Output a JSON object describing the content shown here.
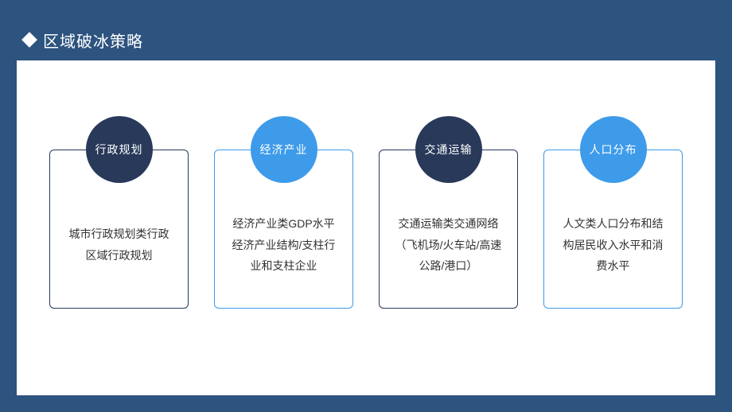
{
  "header": {
    "title": "区域破冰策略"
  },
  "colors": {
    "frame_bg": "#2d537f",
    "content_bg": "#ffffff",
    "circle_dark": "#28395a",
    "circle_light": "#3d9bea",
    "border_dark": "#28395a",
    "border_light": "#3d9bea",
    "text": "#333333"
  },
  "cards": [
    {
      "circle_label": "行政规划",
      "circle_color": "#28395a",
      "border_color": "#28395a",
      "body": "城市行政规划类行政区域行政规划"
    },
    {
      "circle_label": "经济产业",
      "circle_color": "#3d9bea",
      "border_color": "#3d9bea",
      "body": "经济产业类GDP水平经济产业结构/支柱行业和支柱企业"
    },
    {
      "circle_label": "交通运输",
      "circle_color": "#28395a",
      "border_color": "#28395a",
      "body": "交通运输类交通网络（飞机场/火车站/高速公路/港口）"
    },
    {
      "circle_label": "人口分布",
      "circle_color": "#3d9bea",
      "border_color": "#3d9bea",
      "body": "人文类人口分布和结构居民收入水平和消费水平"
    }
  ]
}
